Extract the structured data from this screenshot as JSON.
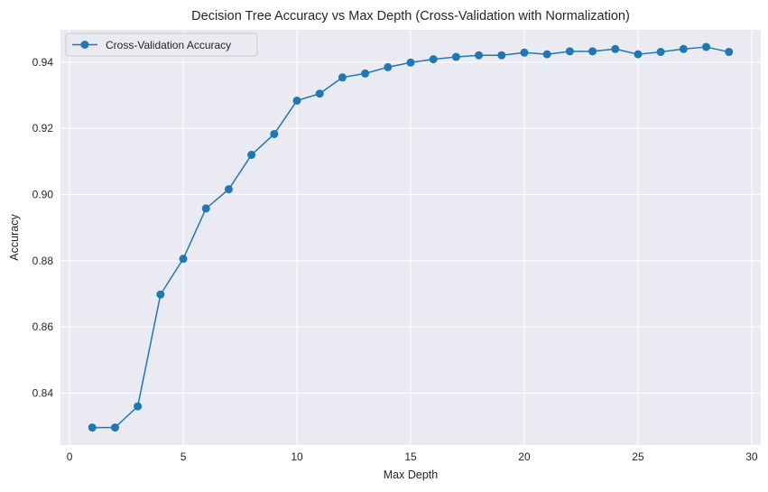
{
  "chart_data": {
    "type": "line",
    "title": "Decision Tree Accuracy vs Max Depth (Cross-Validation with Normalization)",
    "xlabel": "Max Depth",
    "ylabel": "Accuracy",
    "xlim": [
      -0.4,
      30.4
    ],
    "ylim": [
      0.8243,
      0.9498
    ],
    "xticks": [
      0,
      5,
      10,
      15,
      20,
      25,
      30
    ],
    "yticks": [
      0.84,
      0.86,
      0.88,
      0.9,
      0.92,
      0.94
    ],
    "ytick_labels": [
      "0.84",
      "0.86",
      "0.88",
      "0.90",
      "0.92",
      "0.94"
    ],
    "grid": true,
    "legend_position": "top-left",
    "series": [
      {
        "name": "Cross-Validation Accuracy",
        "color": "#1f77b4",
        "marker": "circle",
        "x": [
          1,
          2,
          3,
          4,
          5,
          6,
          7,
          8,
          9,
          10,
          11,
          12,
          13,
          14,
          15,
          16,
          17,
          18,
          19,
          20,
          21,
          22,
          23,
          24,
          25,
          26,
          27,
          28,
          29
        ],
        "y": [
          0.8296,
          0.8296,
          0.836,
          0.8698,
          0.8806,
          0.8958,
          0.9016,
          0.912,
          0.9183,
          0.9284,
          0.9305,
          0.9354,
          0.9366,
          0.9385,
          0.9399,
          0.9409,
          0.9416,
          0.9421,
          0.9421,
          0.9429,
          0.9424,
          0.9433,
          0.9433,
          0.944,
          0.9424,
          0.9431,
          0.944,
          0.9446,
          0.9431
        ]
      }
    ]
  }
}
